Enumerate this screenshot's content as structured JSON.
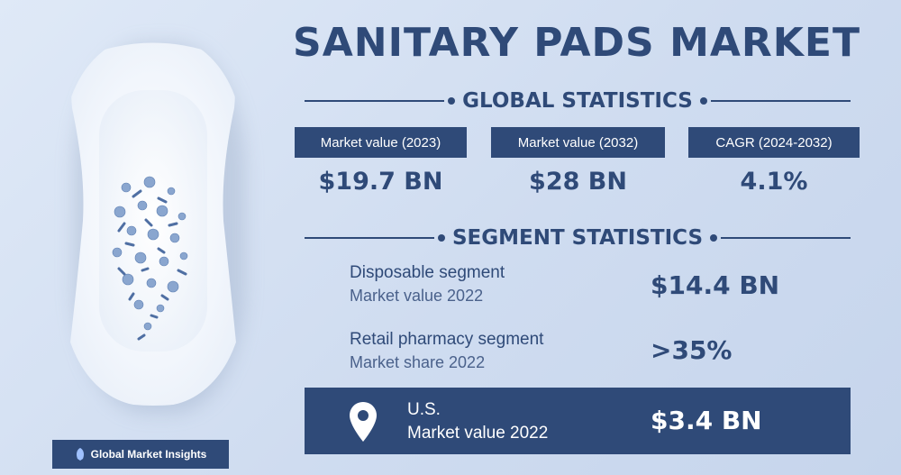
{
  "title": "SANITARY PADS MARKET",
  "global": {
    "heading": "GLOBAL STATISTICS",
    "stats": [
      {
        "label": "Market value (2023)",
        "value": "$19.7 BN"
      },
      {
        "label": "Market value (2032)",
        "value": "$28 BN"
      },
      {
        "label": "CAGR (2024-2032)",
        "value": "4.1%"
      }
    ]
  },
  "segment": {
    "heading": "SEGMENT STATISTICS",
    "items": [
      {
        "name": "Disposable segment",
        "metric": "Market value 2022",
        "value": "$14.4 BN"
      },
      {
        "name": "Retail pharmacy segment",
        "metric": "Market share 2022",
        "value": ">35%"
      }
    ]
  },
  "region": {
    "name": "U.S.",
    "metric": "Market value 2022",
    "value": "$3.4 BN",
    "icon": "location-pin-icon"
  },
  "logo": {
    "text": "Global Market Insights",
    "icon": "globe-logo-icon"
  },
  "colors": {
    "navy": "#2f4a78",
    "background": "#cfdcf0"
  }
}
